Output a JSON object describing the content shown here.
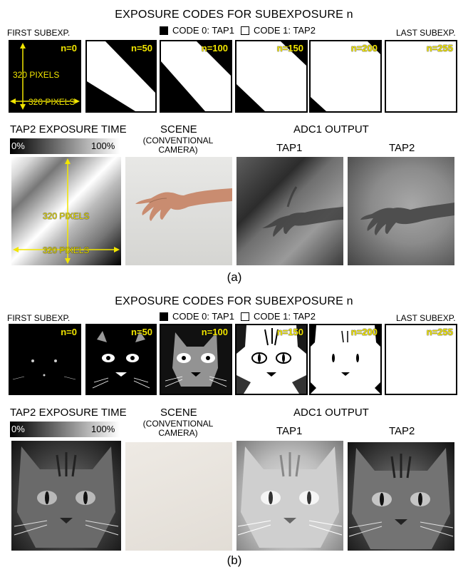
{
  "a": {
    "title": "EXPOSURE CODES FOR SUBEXPOSURE n",
    "first_label": "FIRST SUBEXP.",
    "last_label": "LAST SUBEXP.",
    "legend_code0": "CODE 0: TAP1",
    "legend_code1": "CODE 1: TAP2",
    "tiles": [
      "n=0",
      "n=50",
      "n=100",
      "n=150",
      "n=200",
      "n=255"
    ],
    "pixels_label": "320 PIXELS",
    "tap2_exposure_title": "TAP2 EXPOSURE TIME",
    "scale_min": "0%",
    "scale_max": "100%",
    "scene_title": "SCENE",
    "scene_caption": "(CONVENTIONAL CAMERA)",
    "adc_title": "ADC1 OUTPUT",
    "tap1": "TAP1",
    "tap2": "TAP2",
    "sublabel": "(a)"
  },
  "b": {
    "title": "EXPOSURE CODES FOR SUBEXPOSURE n",
    "first_label": "FIRST SUBEXP.",
    "last_label": "LAST SUBEXP.",
    "legend_code0": "CODE 0: TAP1",
    "legend_code1": "CODE 1: TAP2",
    "tiles": [
      "n=0",
      "n=50",
      "n=100",
      "n=150",
      "n=200",
      "n=255"
    ],
    "tap2_exposure_title": "TAP2 EXPOSURE TIME",
    "scale_min": "0%",
    "scale_max": "100%",
    "scene_title": "SCENE",
    "scene_caption": "(CONVENTIONAL CAMERA)",
    "adc_title": "ADC1 OUTPUT",
    "tap1": "TAP1",
    "tap2": "TAP2",
    "sublabel": "(b)"
  },
  "colors": {
    "annotation_yellow": "#f2e600",
    "code0": "#000000",
    "code1": "#ffffff"
  }
}
